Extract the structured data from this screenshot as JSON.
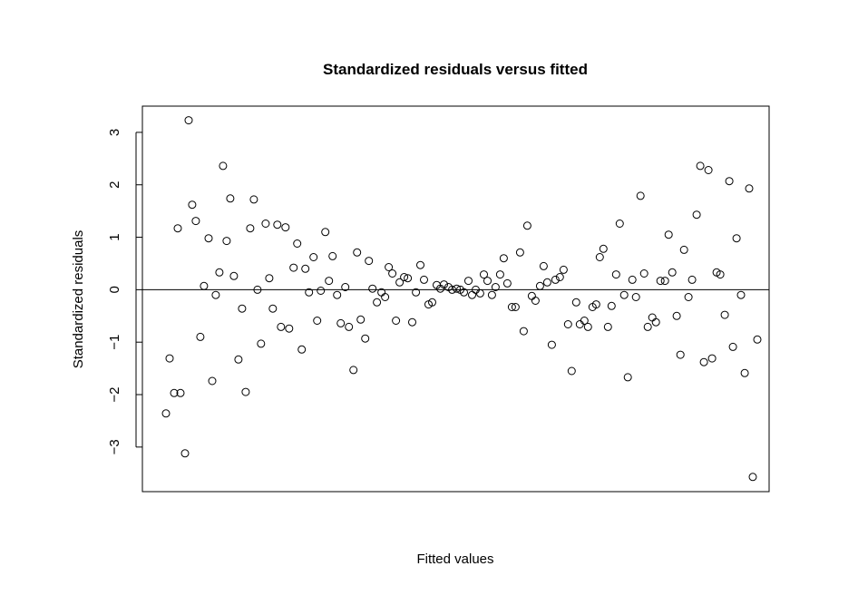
{
  "chart_data": {
    "type": "scatter",
    "title": "Standardized residuals versus fitted",
    "xlabel": "Fitted values",
    "ylabel": "Standardized residuals",
    "ylim": [
      -3.85,
      3.5
    ],
    "xlim": [
      0,
      1
    ],
    "grid": false,
    "legend": "none",
    "y_ticks": [
      -3,
      -2,
      -1,
      0,
      1,
      2,
      3
    ],
    "y_tick_labels": [
      "−3",
      "−2",
      "−1",
      "0",
      "1",
      "2",
      "3"
    ],
    "x_ticks_shown": false,
    "reference_line_y": 0,
    "colors": {
      "marker": "#000000",
      "background": "#ffffff"
    },
    "points": [
      [
        0.0376,
        -2.36
      ],
      [
        0.0434,
        -1.31
      ],
      [
        0.0506,
        -1.97
      ],
      [
        0.0564,
        1.17
      ],
      [
        0.0608,
        -1.97
      ],
      [
        0.068,
        -3.12
      ],
      [
        0.0738,
        3.23
      ],
      [
        0.0795,
        1.62
      ],
      [
        0.0853,
        1.31
      ],
      [
        0.0925,
        -0.9
      ],
      [
        0.0983,
        0.07
      ],
      [
        0.1056,
        0.98
      ],
      [
        0.1114,
        -1.74
      ],
      [
        0.1171,
        -0.1
      ],
      [
        0.1229,
        0.33
      ],
      [
        0.1287,
        2.36
      ],
      [
        0.1345,
        0.93
      ],
      [
        0.1403,
        1.74
      ],
      [
        0.146,
        0.26
      ],
      [
        0.1532,
        -1.33
      ],
      [
        0.159,
        -0.36
      ],
      [
        0.1648,
        -1.95
      ],
      [
        0.172,
        1.17
      ],
      [
        0.1778,
        1.72
      ],
      [
        0.1836,
        -0.0
      ],
      [
        0.1893,
        -1.03
      ],
      [
        0.1966,
        1.26
      ],
      [
        0.2024,
        0.22
      ],
      [
        0.2081,
        -0.36
      ],
      [
        0.2153,
        1.24
      ],
      [
        0.2211,
        -0.71
      ],
      [
        0.2283,
        1.19
      ],
      [
        0.2341,
        -0.74
      ],
      [
        0.2413,
        0.42
      ],
      [
        0.2471,
        0.88
      ],
      [
        0.2543,
        -1.14
      ],
      [
        0.2601,
        0.4
      ],
      [
        0.2659,
        -0.05
      ],
      [
        0.2731,
        0.62
      ],
      [
        0.2789,
        -0.59
      ],
      [
        0.2847,
        -0.02
      ],
      [
        0.2919,
        1.1
      ],
      [
        0.2977,
        0.17
      ],
      [
        0.3035,
        0.64
      ],
      [
        0.3107,
        -0.1
      ],
      [
        0.3165,
        -0.64
      ],
      [
        0.3237,
        0.05
      ],
      [
        0.3295,
        -0.71
      ],
      [
        0.3367,
        -1.53
      ],
      [
        0.3425,
        0.71
      ],
      [
        0.3483,
        -0.57
      ],
      [
        0.3555,
        -0.93
      ],
      [
        0.3613,
        0.55
      ],
      [
        0.3671,
        0.02
      ],
      [
        0.3743,
        -0.24
      ],
      [
        0.3815,
        -0.05
      ],
      [
        0.3873,
        -0.14
      ],
      [
        0.3931,
        0.43
      ],
      [
        0.3988,
        0.31
      ],
      [
        0.4046,
        -0.59
      ],
      [
        0.4104,
        0.14
      ],
      [
        0.4176,
        0.24
      ],
      [
        0.4234,
        0.22
      ],
      [
        0.4306,
        -0.62
      ],
      [
        0.4364,
        -0.05
      ],
      [
        0.4436,
        0.47
      ],
      [
        0.4494,
        0.19
      ],
      [
        0.4566,
        -0.28
      ],
      [
        0.4624,
        -0.24
      ],
      [
        0.4696,
        0.09
      ],
      [
        0.4754,
        0.02
      ],
      [
        0.4812,
        0.1
      ],
      [
        0.4884,
        0.05
      ],
      [
        0.4942,
        0.0
      ],
      [
        0.5014,
        0.02
      ],
      [
        0.5072,
        -0.0
      ],
      [
        0.513,
        -0.05
      ],
      [
        0.5202,
        0.17
      ],
      [
        0.526,
        -0.1
      ],
      [
        0.5318,
        0.0
      ],
      [
        0.539,
        -0.07
      ],
      [
        0.5448,
        0.29
      ],
      [
        0.5506,
        0.17
      ],
      [
        0.5578,
        -0.1
      ],
      [
        0.5636,
        0.05
      ],
      [
        0.5708,
        0.29
      ],
      [
        0.5766,
        0.6
      ],
      [
        0.5824,
        0.12
      ],
      [
        0.5896,
        -0.33
      ],
      [
        0.5954,
        -0.33
      ],
      [
        0.6026,
        0.71
      ],
      [
        0.6084,
        -0.79
      ],
      [
        0.6142,
        1.22
      ],
      [
        0.6214,
        -0.12
      ],
      [
        0.6272,
        -0.21
      ],
      [
        0.6344,
        0.07
      ],
      [
        0.6402,
        0.45
      ],
      [
        0.646,
        0.14
      ],
      [
        0.6532,
        -1.05
      ],
      [
        0.659,
        0.19
      ],
      [
        0.6662,
        0.24
      ],
      [
        0.672,
        0.38
      ],
      [
        0.6792,
        -0.66
      ],
      [
        0.685,
        -1.55
      ],
      [
        0.6922,
        -0.24
      ],
      [
        0.698,
        -0.66
      ],
      [
        0.7052,
        -0.59
      ],
      [
        0.711,
        -0.71
      ],
      [
        0.7182,
        -0.33
      ],
      [
        0.724,
        -0.28
      ],
      [
        0.7298,
        0.62
      ],
      [
        0.7356,
        0.78
      ],
      [
        0.7428,
        -0.71
      ],
      [
        0.7486,
        -0.31
      ],
      [
        0.7558,
        0.29
      ],
      [
        0.7616,
        1.26
      ],
      [
        0.7688,
        -0.1
      ],
      [
        0.7746,
        -1.67
      ],
      [
        0.7818,
        0.19
      ],
      [
        0.7876,
        -0.14
      ],
      [
        0.7948,
        1.79
      ],
      [
        0.8006,
        0.31
      ],
      [
        0.8064,
        -0.71
      ],
      [
        0.8136,
        -0.53
      ],
      [
        0.8194,
        -0.62
      ],
      [
        0.8266,
        0.17
      ],
      [
        0.8338,
        0.17
      ],
      [
        0.8396,
        1.05
      ],
      [
        0.8454,
        0.33
      ],
      [
        0.8526,
        -0.5
      ],
      [
        0.8584,
        -1.24
      ],
      [
        0.8642,
        0.76
      ],
      [
        0.8714,
        -0.14
      ],
      [
        0.8772,
        0.19
      ],
      [
        0.8844,
        1.43
      ],
      [
        0.8902,
        2.36
      ],
      [
        0.896,
        -1.38
      ],
      [
        0.9032,
        2.28
      ],
      [
        0.909,
        -1.31
      ],
      [
        0.9162,
        0.33
      ],
      [
        0.922,
        0.29
      ],
      [
        0.9292,
        -0.48
      ],
      [
        0.9364,
        2.07
      ],
      [
        0.9422,
        -1.09
      ],
      [
        0.948,
        0.98
      ],
      [
        0.9552,
        -0.1
      ],
      [
        0.961,
        -1.59
      ],
      [
        0.9682,
        1.93
      ],
      [
        0.974,
        -3.57
      ],
      [
        0.9812,
        -0.95
      ]
    ]
  }
}
